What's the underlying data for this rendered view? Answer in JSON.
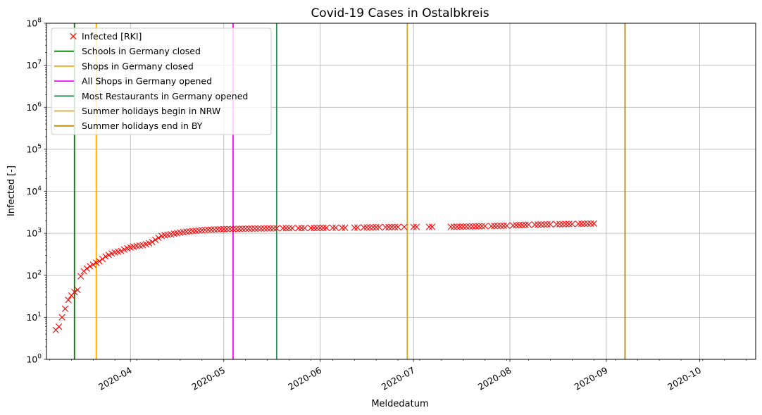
{
  "chart_data": {
    "type": "scatter",
    "title": "Covid-19 Cases in Ostalbkreis",
    "xlabel": "Meldedatum",
    "ylabel": "Infected [-]",
    "yscale": "log",
    "ylim": [
      1,
      100000000
    ],
    "xlim": [
      "2020-03-05",
      "2020-10-19"
    ],
    "grid": true,
    "legend_position": "top-left",
    "x_ticks": [
      "2020-04",
      "2020-05",
      "2020-06",
      "2020-07",
      "2020-08",
      "2020-09",
      "2020-10"
    ],
    "y_ticks": [
      {
        "value": 1,
        "exp": "0"
      },
      {
        "value": 10,
        "exp": "1"
      },
      {
        "value": 100,
        "exp": "2"
      },
      {
        "value": 1000,
        "exp": "3"
      },
      {
        "value": 10000,
        "exp": "4"
      },
      {
        "value": 100000,
        "exp": "5"
      },
      {
        "value": 1000000,
        "exp": "6"
      },
      {
        "value": 10000000,
        "exp": "7"
      },
      {
        "value": 100000000,
        "exp": "8"
      }
    ],
    "y_tick_base": "10",
    "series": [
      {
        "name": "Infected [RKI]",
        "color": "#ff0000",
        "marker": "x",
        "points": [
          {
            "x": "2020-03-08",
            "y": 5
          },
          {
            "x": "2020-03-09",
            "y": 6
          },
          {
            "x": "2020-03-10",
            "y": 10
          },
          {
            "x": "2020-03-11",
            "y": 16
          },
          {
            "x": "2020-03-12",
            "y": 26
          },
          {
            "x": "2020-03-13",
            "y": 33
          },
          {
            "x": "2020-03-14",
            "y": 40
          },
          {
            "x": "2020-03-15",
            "y": 45
          },
          {
            "x": "2020-03-16",
            "y": 95
          },
          {
            "x": "2020-03-17",
            "y": 125
          },
          {
            "x": "2020-03-18",
            "y": 145
          },
          {
            "x": "2020-03-19",
            "y": 165
          },
          {
            "x": "2020-03-20",
            "y": 180
          },
          {
            "x": "2020-03-21",
            "y": 200
          },
          {
            "x": "2020-03-22",
            "y": 215
          },
          {
            "x": "2020-03-23",
            "y": 245
          },
          {
            "x": "2020-03-24",
            "y": 280
          },
          {
            "x": "2020-03-25",
            "y": 305
          },
          {
            "x": "2020-03-26",
            "y": 330
          },
          {
            "x": "2020-03-27",
            "y": 350
          },
          {
            "x": "2020-03-28",
            "y": 365
          },
          {
            "x": "2020-03-29",
            "y": 380
          },
          {
            "x": "2020-03-30",
            "y": 410
          },
          {
            "x": "2020-03-31",
            "y": 440
          },
          {
            "x": "2020-04-01",
            "y": 460
          },
          {
            "x": "2020-04-02",
            "y": 480
          },
          {
            "x": "2020-04-03",
            "y": 500
          },
          {
            "x": "2020-04-04",
            "y": 510
          },
          {
            "x": "2020-04-05",
            "y": 520
          },
          {
            "x": "2020-04-06",
            "y": 550
          },
          {
            "x": "2020-04-07",
            "y": 580
          },
          {
            "x": "2020-04-08",
            "y": 620
          },
          {
            "x": "2020-04-09",
            "y": 700
          },
          {
            "x": "2020-04-10",
            "y": 780
          },
          {
            "x": "2020-04-11",
            "y": 870
          },
          {
            "x": "2020-04-12",
            "y": 900
          },
          {
            "x": "2020-04-13",
            "y": 920
          },
          {
            "x": "2020-04-14",
            "y": 950
          },
          {
            "x": "2020-04-15",
            "y": 980
          },
          {
            "x": "2020-04-16",
            "y": 1010
          },
          {
            "x": "2020-04-17",
            "y": 1040
          },
          {
            "x": "2020-04-18",
            "y": 1070
          },
          {
            "x": "2020-04-19",
            "y": 1090
          },
          {
            "x": "2020-04-20",
            "y": 1110
          },
          {
            "x": "2020-04-21",
            "y": 1130
          },
          {
            "x": "2020-04-22",
            "y": 1150
          },
          {
            "x": "2020-04-23",
            "y": 1170
          },
          {
            "x": "2020-04-24",
            "y": 1185
          },
          {
            "x": "2020-04-25",
            "y": 1200
          },
          {
            "x": "2020-04-26",
            "y": 1210
          },
          {
            "x": "2020-04-27",
            "y": 1220
          },
          {
            "x": "2020-04-28",
            "y": 1230
          },
          {
            "x": "2020-04-29",
            "y": 1240
          },
          {
            "x": "2020-04-30",
            "y": 1250
          },
          {
            "x": "2020-05-01",
            "y": 1255
          },
          {
            "x": "2020-05-02",
            "y": 1260
          },
          {
            "x": "2020-05-03",
            "y": 1265
          },
          {
            "x": "2020-05-04",
            "y": 1270
          },
          {
            "x": "2020-05-05",
            "y": 1275
          },
          {
            "x": "2020-05-06",
            "y": 1280
          },
          {
            "x": "2020-05-07",
            "y": 1285
          },
          {
            "x": "2020-05-08",
            "y": 1290
          },
          {
            "x": "2020-05-09",
            "y": 1292
          },
          {
            "x": "2020-05-10",
            "y": 1295
          },
          {
            "x": "2020-05-11",
            "y": 1298
          },
          {
            "x": "2020-05-12",
            "y": 1300
          },
          {
            "x": "2020-05-13",
            "y": 1302
          },
          {
            "x": "2020-05-14",
            "y": 1305
          },
          {
            "x": "2020-05-15",
            "y": 1308
          },
          {
            "x": "2020-05-16",
            "y": 1310
          },
          {
            "x": "2020-05-17",
            "y": 1312
          },
          {
            "x": "2020-05-18",
            "y": 1315
          },
          {
            "x": "2020-05-20",
            "y": 1320
          },
          {
            "x": "2020-05-21",
            "y": 1322
          },
          {
            "x": "2020-05-22",
            "y": 1325
          },
          {
            "x": "2020-05-23",
            "y": 1328
          },
          {
            "x": "2020-05-25",
            "y": 1330
          },
          {
            "x": "2020-05-26",
            "y": 1332
          },
          {
            "x": "2020-05-27",
            "y": 1335
          },
          {
            "x": "2020-05-29",
            "y": 1338
          },
          {
            "x": "2020-05-30",
            "y": 1340
          },
          {
            "x": "2020-05-31",
            "y": 1342
          },
          {
            "x": "2020-06-01",
            "y": 1345
          },
          {
            "x": "2020-06-02",
            "y": 1348
          },
          {
            "x": "2020-06-03",
            "y": 1350
          },
          {
            "x": "2020-06-05",
            "y": 1352
          },
          {
            "x": "2020-06-06",
            "y": 1355
          },
          {
            "x": "2020-06-08",
            "y": 1358
          },
          {
            "x": "2020-06-09",
            "y": 1360
          },
          {
            "x": "2020-06-12",
            "y": 1365
          },
          {
            "x": "2020-06-13",
            "y": 1370
          },
          {
            "x": "2020-06-15",
            "y": 1375
          },
          {
            "x": "2020-06-16",
            "y": 1380
          },
          {
            "x": "2020-06-17",
            "y": 1385
          },
          {
            "x": "2020-06-18",
            "y": 1390
          },
          {
            "x": "2020-06-19",
            "y": 1395
          },
          {
            "x": "2020-06-20",
            "y": 1398
          },
          {
            "x": "2020-06-22",
            "y": 1400
          },
          {
            "x": "2020-06-23",
            "y": 1402
          },
          {
            "x": "2020-06-24",
            "y": 1405
          },
          {
            "x": "2020-06-25",
            "y": 1408
          },
          {
            "x": "2020-06-26",
            "y": 1410
          },
          {
            "x": "2020-06-28",
            "y": 1412
          },
          {
            "x": "2020-07-01",
            "y": 1415
          },
          {
            "x": "2020-07-02",
            "y": 1418
          },
          {
            "x": "2020-07-06",
            "y": 1420
          },
          {
            "x": "2020-07-07",
            "y": 1422
          },
          {
            "x": "2020-07-13",
            "y": 1425
          },
          {
            "x": "2020-07-14",
            "y": 1430
          },
          {
            "x": "2020-07-15",
            "y": 1435
          },
          {
            "x": "2020-07-16",
            "y": 1440
          },
          {
            "x": "2020-07-17",
            "y": 1445
          },
          {
            "x": "2020-07-18",
            "y": 1450
          },
          {
            "x": "2020-07-19",
            "y": 1455
          },
          {
            "x": "2020-07-20",
            "y": 1460
          },
          {
            "x": "2020-07-21",
            "y": 1465
          },
          {
            "x": "2020-07-22",
            "y": 1470
          },
          {
            "x": "2020-07-23",
            "y": 1475
          },
          {
            "x": "2020-07-24",
            "y": 1480
          },
          {
            "x": "2020-07-26",
            "y": 1490
          },
          {
            "x": "2020-07-27",
            "y": 1500
          },
          {
            "x": "2020-07-28",
            "y": 1505
          },
          {
            "x": "2020-07-29",
            "y": 1510
          },
          {
            "x": "2020-07-30",
            "y": 1515
          },
          {
            "x": "2020-07-31",
            "y": 1520
          },
          {
            "x": "2020-08-02",
            "y": 1540
          },
          {
            "x": "2020-08-03",
            "y": 1560
          },
          {
            "x": "2020-08-04",
            "y": 1570
          },
          {
            "x": "2020-08-05",
            "y": 1580
          },
          {
            "x": "2020-08-06",
            "y": 1590
          },
          {
            "x": "2020-08-07",
            "y": 1600
          },
          {
            "x": "2020-08-09",
            "y": 1610
          },
          {
            "x": "2020-08-10",
            "y": 1615
          },
          {
            "x": "2020-08-11",
            "y": 1620
          },
          {
            "x": "2020-08-12",
            "y": 1625
          },
          {
            "x": "2020-08-13",
            "y": 1630
          },
          {
            "x": "2020-08-14",
            "y": 1635
          },
          {
            "x": "2020-08-16",
            "y": 1640
          },
          {
            "x": "2020-08-17",
            "y": 1645
          },
          {
            "x": "2020-08-18",
            "y": 1650
          },
          {
            "x": "2020-08-19",
            "y": 1655
          },
          {
            "x": "2020-08-20",
            "y": 1660
          },
          {
            "x": "2020-08-21",
            "y": 1665
          },
          {
            "x": "2020-08-23",
            "y": 1680
          },
          {
            "x": "2020-08-24",
            "y": 1690
          },
          {
            "x": "2020-08-25",
            "y": 1695
          },
          {
            "x": "2020-08-26",
            "y": 1700
          },
          {
            "x": "2020-08-27",
            "y": 1705
          },
          {
            "x": "2020-08-28",
            "y": 1710
          }
        ]
      }
    ],
    "events": [
      {
        "name": "Schools in Germany closed",
        "date": "2020-03-14",
        "color": "#008000"
      },
      {
        "name": "Shops in Germany closed",
        "date": "2020-03-21",
        "color": "#ffa500"
      },
      {
        "name": "All Shops in Germany opened",
        "date": "2020-05-04",
        "color": "#ff00ff"
      },
      {
        "name": "Most Restaurants in Germany opened",
        "date": "2020-05-18",
        "color": "#2e8b57"
      },
      {
        "name": "Summer holidays begin in NRW",
        "date": "2020-06-29",
        "color": "#daa520"
      },
      {
        "name": "Summer holidays end in BY",
        "date": "2020-09-07",
        "color": "#b8860b"
      }
    ]
  }
}
